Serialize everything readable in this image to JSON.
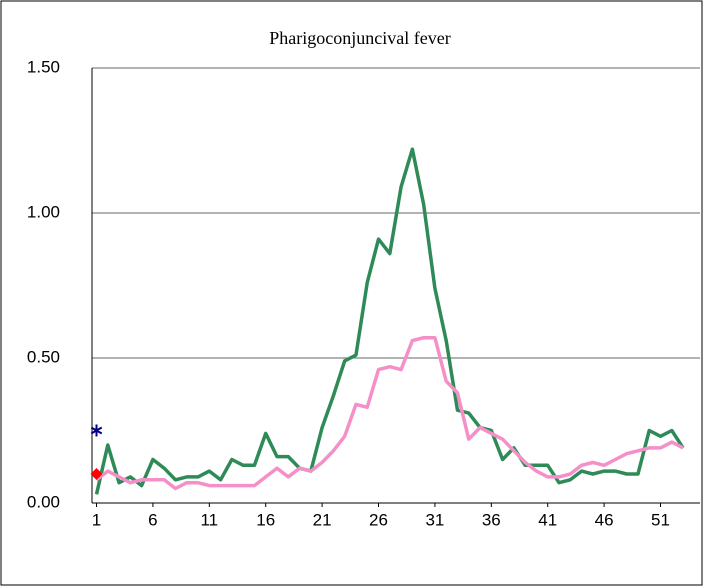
{
  "chart_data": {
    "type": "line",
    "title": "Pharigoconjuncival fever",
    "x": [
      1,
      2,
      3,
      4,
      5,
      6,
      7,
      8,
      9,
      10,
      11,
      12,
      13,
      14,
      15,
      16,
      17,
      18,
      19,
      20,
      21,
      22,
      23,
      24,
      25,
      26,
      27,
      28,
      29,
      30,
      31,
      32,
      33,
      34,
      35,
      36,
      37,
      38,
      39,
      40,
      41,
      42,
      43,
      44,
      45,
      46,
      47,
      48,
      49,
      50,
      51,
      52,
      53
    ],
    "series": [
      {
        "color": "#2e8b57",
        "marker": "none",
        "values": [
          0.03,
          0.2,
          0.07,
          0.09,
          0.06,
          0.15,
          0.12,
          0.08,
          0.09,
          0.09,
          0.11,
          0.08,
          0.15,
          0.13,
          0.13,
          0.24,
          0.16,
          0.16,
          0.12,
          0.11,
          0.26,
          0.37,
          0.49,
          0.51,
          0.76,
          0.91,
          0.86,
          1.09,
          1.22,
          1.03,
          0.74,
          0.56,
          0.32,
          0.31,
          0.26,
          0.25,
          0.15,
          0.19,
          0.13,
          0.13,
          0.13,
          0.07,
          0.08,
          0.11,
          0.1,
          0.11,
          0.11,
          0.1,
          0.1,
          0.25,
          0.23,
          0.25,
          0.19
        ]
      },
      {
        "color": "#f58fc8",
        "marker": "none",
        "values": [
          0.08,
          0.11,
          0.09,
          0.07,
          0.08,
          0.08,
          0.08,
          0.05,
          0.07,
          0.07,
          0.06,
          0.06,
          0.06,
          0.06,
          0.06,
          0.09,
          0.12,
          0.09,
          0.12,
          0.11,
          0.14,
          0.18,
          0.23,
          0.34,
          0.33,
          0.46,
          0.47,
          0.46,
          0.56,
          0.57,
          0.57,
          0.42,
          0.38,
          0.22,
          0.26,
          0.24,
          0.22,
          0.18,
          0.14,
          0.11,
          0.09,
          0.09,
          0.1,
          0.13,
          0.14,
          0.13,
          0.15,
          0.17,
          0.18,
          0.19,
          0.19,
          0.21,
          0.19
        ]
      },
      {
        "color": "#000080",
        "marker": "star",
        "values": [
          0.25,
          null,
          null,
          null,
          null,
          null,
          null,
          null,
          null,
          null,
          null,
          null,
          null,
          null,
          null,
          null,
          null,
          null,
          null,
          null,
          null,
          null,
          null,
          null,
          null,
          null,
          null,
          null,
          null,
          null,
          null,
          null,
          null,
          null,
          null,
          null,
          null,
          null,
          null,
          null,
          null,
          null,
          null,
          null,
          null,
          null,
          null,
          null,
          null,
          null,
          null,
          null,
          null
        ]
      },
      {
        "color": "#ff0000",
        "marker": "diamond",
        "values": [
          0.1,
          null,
          null,
          null,
          null,
          null,
          null,
          null,
          null,
          null,
          null,
          null,
          null,
          null,
          null,
          null,
          null,
          null,
          null,
          null,
          null,
          null,
          null,
          null,
          null,
          null,
          null,
          null,
          null,
          null,
          null,
          null,
          null,
          null,
          null,
          null,
          null,
          null,
          null,
          null,
          null,
          null,
          null,
          null,
          null,
          null,
          null,
          null,
          null,
          null,
          null,
          null,
          null
        ]
      }
    ],
    "xlim": [
      0.6,
      54.5
    ],
    "xticks": [
      1,
      6,
      11,
      16,
      21,
      26,
      31,
      36,
      41,
      46,
      51
    ],
    "ylim": [
      0,
      1.5
    ],
    "yticks": [
      {
        "value": 0,
        "label": "0.00"
      },
      {
        "value": 0.5,
        "label": "0.50"
      },
      {
        "value": 1,
        "label": "1.00"
      },
      {
        "value": 1.5,
        "label": "1.50"
      }
    ],
    "grid": true
  }
}
